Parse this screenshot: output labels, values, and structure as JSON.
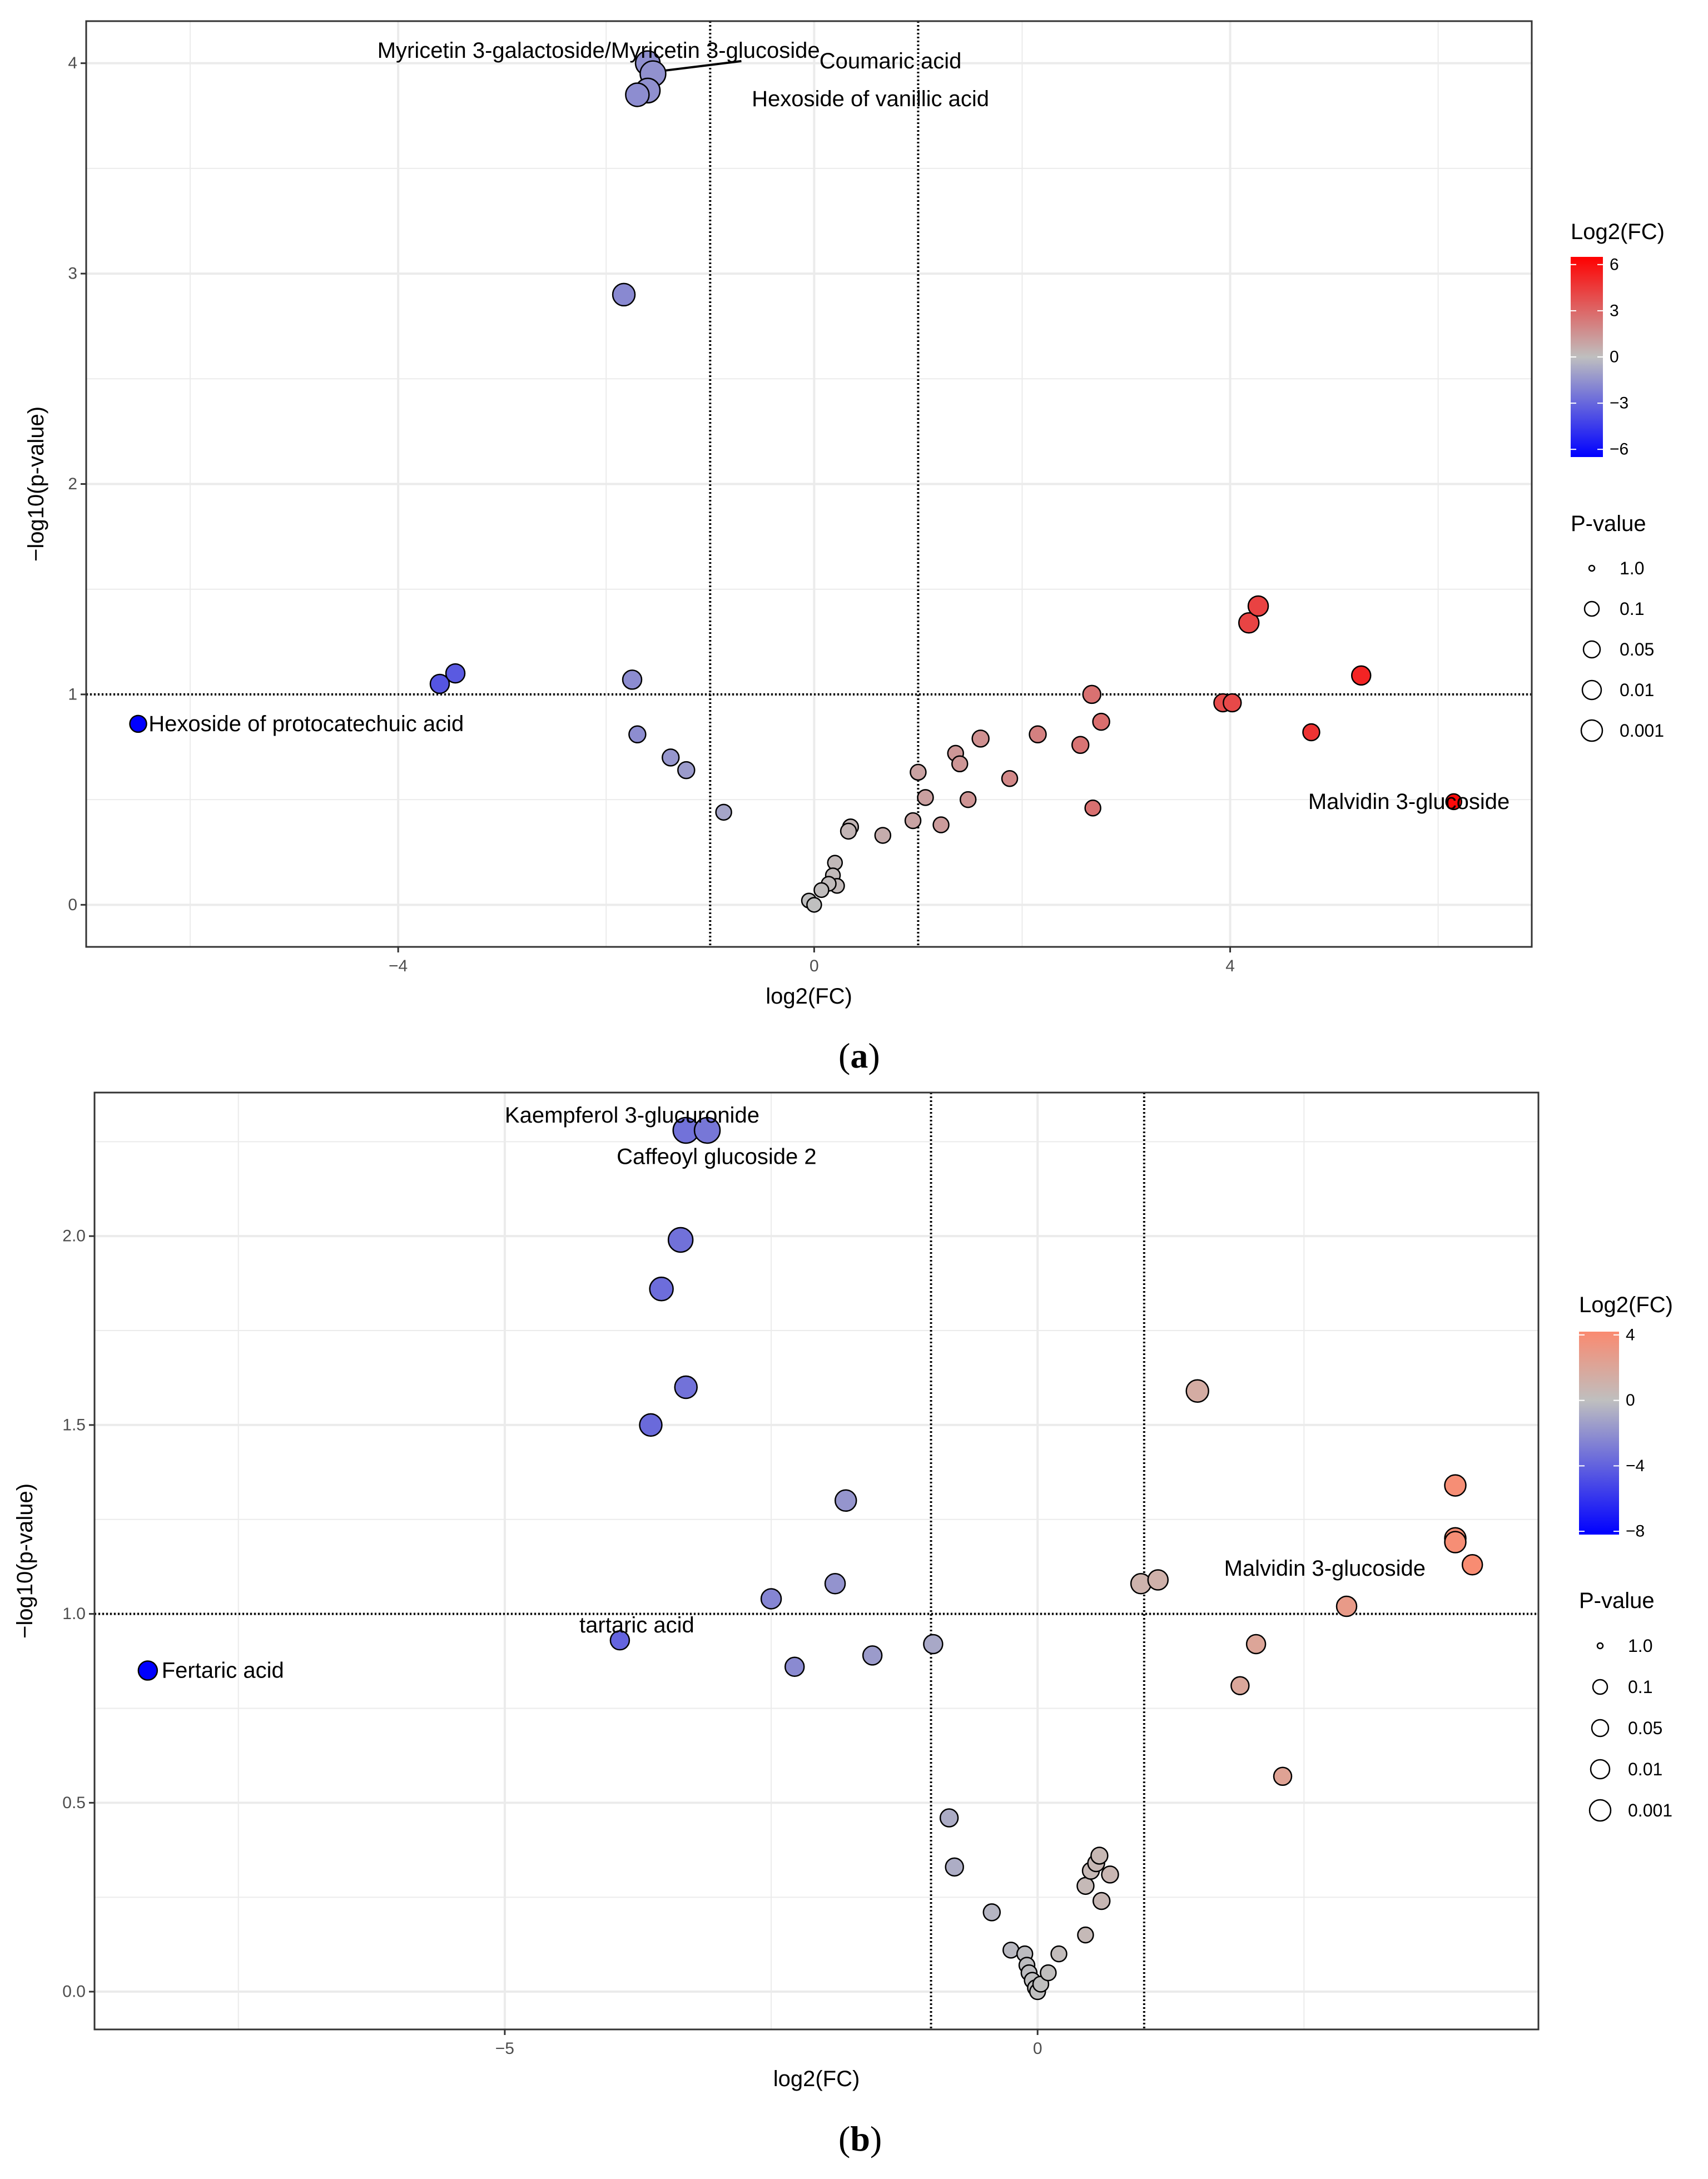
{
  "chart_data": [
    {
      "type": "scatter",
      "panel": "(a)",
      "panel_letter": "a",
      "xlabel": "log2(FC)",
      "ylabel": "−log10(p-value)",
      "xlim": [
        -7,
        6.9
      ],
      "ylim": [
        -0.2,
        4.2
      ],
      "xticks": [
        -4,
        0,
        4
      ],
      "xtick_labels": [
        "−4",
        "0",
        "4"
      ],
      "yticks": [
        0,
        1,
        2,
        3,
        4
      ],
      "ytick_labels": [
        "0",
        "1",
        "2",
        "3",
        "4"
      ],
      "hline": 1,
      "vlines": [
        -1,
        1
      ],
      "color_legend": {
        "title": "Log2(FC)",
        "range": [
          -6.5,
          6.5
        ],
        "ticks": [
          6,
          3,
          0,
          -3,
          -6
        ],
        "tick_labels": [
          "6",
          "3",
          "0",
          "−3",
          "−6"
        ],
        "low_color": "#0000ff",
        "mid_color": "#bfbfbf",
        "high_color": "#ff0000"
      },
      "size_legend": {
        "title": "P-value",
        "labels": [
          "1.0",
          "0.1",
          "0.05",
          "0.01",
          "0.001"
        ],
        "radii": [
          5,
          13,
          15,
          17,
          19
        ]
      },
      "points": [
        {
          "x": -1.6,
          "y": 4.0,
          "r": 22
        },
        {
          "x": -1.55,
          "y": 3.95,
          "r": 23
        },
        {
          "x": -1.6,
          "y": 3.87,
          "r": 22
        },
        {
          "x": -1.7,
          "y": 3.85,
          "r": 21
        },
        {
          "x": -1.83,
          "y": 2.9,
          "r": 20
        },
        {
          "x": -3.6,
          "y": 1.05,
          "r": 17
        },
        {
          "x": -3.45,
          "y": 1.1,
          "r": 17
        },
        {
          "x": -1.75,
          "y": 1.07,
          "r": 17
        },
        {
          "x": -6.5,
          "y": 0.86,
          "r": 15
        },
        {
          "x": -1.7,
          "y": 0.81,
          "r": 15
        },
        {
          "x": -1.38,
          "y": 0.7,
          "r": 15
        },
        {
          "x": -1.23,
          "y": 0.64,
          "r": 15
        },
        {
          "x": -0.87,
          "y": 0.44,
          "r": 14
        },
        {
          "x": 0.35,
          "y": 0.37,
          "r": 14
        },
        {
          "x": 0.33,
          "y": 0.35,
          "r": 14
        },
        {
          "x": 0.66,
          "y": 0.33,
          "r": 14
        },
        {
          "x": 0.95,
          "y": 0.4,
          "r": 14
        },
        {
          "x": 1.0,
          "y": 0.63,
          "r": 14
        },
        {
          "x": 1.07,
          "y": 0.51,
          "r": 14
        },
        {
          "x": 1.22,
          "y": 0.38,
          "r": 14
        },
        {
          "x": 1.36,
          "y": 0.72,
          "r": 14
        },
        {
          "x": 1.4,
          "y": 0.67,
          "r": 14
        },
        {
          "x": 1.48,
          "y": 0.5,
          "r": 14
        },
        {
          "x": 1.6,
          "y": 0.79,
          "r": 15
        },
        {
          "x": 1.88,
          "y": 0.6,
          "r": 14
        },
        {
          "x": 2.15,
          "y": 0.81,
          "r": 15
        },
        {
          "x": 2.56,
          "y": 0.76,
          "r": 15
        },
        {
          "x": 2.67,
          "y": 1.0,
          "r": 16
        },
        {
          "x": 2.68,
          "y": 0.46,
          "r": 14
        },
        {
          "x": 2.76,
          "y": 0.87,
          "r": 15
        },
        {
          "x": 3.93,
          "y": 0.96,
          "r": 16
        },
        {
          "x": 4.02,
          "y": 0.96,
          "r": 16
        },
        {
          "x": 4.18,
          "y": 1.34,
          "r": 18
        },
        {
          "x": 4.27,
          "y": 1.42,
          "r": 18
        },
        {
          "x": 4.78,
          "y": 0.82,
          "r": 15
        },
        {
          "x": 5.26,
          "y": 1.09,
          "r": 17
        },
        {
          "x": 6.15,
          "y": 0.49,
          "r": 14
        },
        {
          "x": 0.2,
          "y": 0.2,
          "r": 13
        },
        {
          "x": 0.18,
          "y": 0.14,
          "r": 13
        },
        {
          "x": 0.22,
          "y": 0.09,
          "r": 13
        },
        {
          "x": 0.14,
          "y": 0.1,
          "r": 13
        },
        {
          "x": 0.07,
          "y": 0.07,
          "r": 13
        },
        {
          "x": -0.05,
          "y": 0.02,
          "r": 13
        },
        {
          "x": 0.0,
          "y": 0.0,
          "r": 13
        }
      ],
      "annotations": [
        {
          "text": "Myricetin 3-galactoside/Myricetin 3-glucoside",
          "x": -4.2,
          "y": 4.06
        },
        {
          "text": "Coumaric acid",
          "x": 0.05,
          "y": 4.01
        },
        {
          "text": "Hexoside of vanillic acid",
          "x": -0.6,
          "y": 3.83
        },
        {
          "text": "Hexoside of protocatechuic acid",
          "x": -6.4,
          "y": 0.86
        },
        {
          "text": "Malvidin 3-glucoside",
          "x": 4.75,
          "y": 0.49
        }
      ]
    },
    {
      "type": "scatter",
      "panel": "(b)",
      "panel_letter": "b",
      "xlabel": "log2(FC)",
      "ylabel": "−log10(p-value)",
      "xlim": [
        -8.85,
        4.7
      ],
      "ylim": [
        -0.1,
        2.38
      ],
      "xticks": [
        -5,
        0
      ],
      "xtick_labels": [
        "−5",
        "0"
      ],
      "yticks": [
        0.0,
        0.5,
        1.0,
        1.5,
        2.0
      ],
      "ytick_labels": [
        "0.0",
        "0.5",
        "1.0",
        "1.5",
        "2.0"
      ],
      "hline": 1,
      "vlines": [
        -1,
        1
      ],
      "color_legend": {
        "title": "Log2(FC)",
        "range": [
          -8.2,
          4.2
        ],
        "ticks": [
          4,
          0,
          -4,
          -8
        ],
        "tick_labels": [
          "4",
          "0",
          "−4",
          "−8"
        ],
        "low_color": "#0000ff",
        "mid_color": "#bfbfbf",
        "high_color": "#fa8a70"
      },
      "size_legend": {
        "title": "P-value",
        "labels": [
          "1.0",
          "0.1",
          "0.05",
          "0.01",
          "0.001"
        ],
        "radii": [
          5,
          13,
          15,
          17,
          19
        ]
      },
      "points": [
        {
          "x": -3.3,
          "y": 2.28,
          "r": 23
        },
        {
          "x": -3.1,
          "y": 2.28,
          "r": 23
        },
        {
          "x": -3.35,
          "y": 1.99,
          "r": 22
        },
        {
          "x": -3.53,
          "y": 1.86,
          "r": 21
        },
        {
          "x": -3.3,
          "y": 1.6,
          "r": 20
        },
        {
          "x": -3.63,
          "y": 1.5,
          "r": 20
        },
        {
          "x": -1.8,
          "y": 1.3,
          "r": 19
        },
        {
          "x": -1.9,
          "y": 1.08,
          "r": 18
        },
        {
          "x": -2.5,
          "y": 1.04,
          "r": 18
        },
        {
          "x": -3.92,
          "y": 0.93,
          "r": 17
        },
        {
          "x": -1.55,
          "y": 0.89,
          "r": 17
        },
        {
          "x": -2.28,
          "y": 0.86,
          "r": 17
        },
        {
          "x": -8.35,
          "y": 0.85,
          "r": 17
        },
        {
          "x": -0.98,
          "y": 0.92,
          "r": 17
        },
        {
          "x": -0.83,
          "y": 0.46,
          "r": 16
        },
        {
          "x": -0.78,
          "y": 0.33,
          "r": 16
        },
        {
          "x": -0.43,
          "y": 0.21,
          "r": 15
        },
        {
          "x": -0.25,
          "y": 0.11,
          "r": 14
        },
        {
          "x": -0.12,
          "y": 0.1,
          "r": 14
        },
        {
          "x": -0.1,
          "y": 0.07,
          "r": 14
        },
        {
          "x": -0.08,
          "y": 0.05,
          "r": 14
        },
        {
          "x": -0.05,
          "y": 0.03,
          "r": 14
        },
        {
          "x": -0.02,
          "y": 0.01,
          "r": 14
        },
        {
          "x": 0.0,
          "y": 0.0,
          "r": 14
        },
        {
          "x": 0.03,
          "y": 0.02,
          "r": 14
        },
        {
          "x": 0.1,
          "y": 0.05,
          "r": 14
        },
        {
          "x": 0.2,
          "y": 0.1,
          "r": 14
        },
        {
          "x": 0.45,
          "y": 0.15,
          "r": 14
        },
        {
          "x": 0.45,
          "y": 0.28,
          "r": 15
        },
        {
          "x": 0.5,
          "y": 0.32,
          "r": 15
        },
        {
          "x": 0.55,
          "y": 0.34,
          "r": 15
        },
        {
          "x": 0.58,
          "y": 0.36,
          "r": 15
        },
        {
          "x": 0.68,
          "y": 0.31,
          "r": 15
        },
        {
          "x": 0.6,
          "y": 0.24,
          "r": 15
        },
        {
          "x": 0.97,
          "y": 1.08,
          "r": 18
        },
        {
          "x": 1.13,
          "y": 1.09,
          "r": 18
        },
        {
          "x": 1.5,
          "y": 1.59,
          "r": 20
        },
        {
          "x": 1.9,
          "y": 0.81,
          "r": 16
        },
        {
          "x": 2.05,
          "y": 0.92,
          "r": 17
        },
        {
          "x": 2.3,
          "y": 0.57,
          "r": 16
        },
        {
          "x": 2.9,
          "y": 1.02,
          "r": 18
        },
        {
          "x": 3.92,
          "y": 1.34,
          "r": 19
        },
        {
          "x": 3.92,
          "y": 1.2,
          "r": 19
        },
        {
          "x": 3.92,
          "y": 1.19,
          "r": 19
        },
        {
          "x": 4.08,
          "y": 1.13,
          "r": 18
        }
      ],
      "annotations": [
        {
          "text": "Kaempferol 3-glucuronide",
          "x": -5.0,
          "y": 2.32
        },
        {
          "text": "Caffeoyl glucoside 2",
          "x": -3.95,
          "y": 2.21
        },
        {
          "text": "tartaric acid",
          "x": -4.3,
          "y": 0.97
        },
        {
          "text": "Fertaric acid",
          "x": -8.22,
          "y": 0.85
        },
        {
          "text": "Malvidin 3-glucoside",
          "x": 1.75,
          "y": 1.12
        }
      ]
    }
  ]
}
